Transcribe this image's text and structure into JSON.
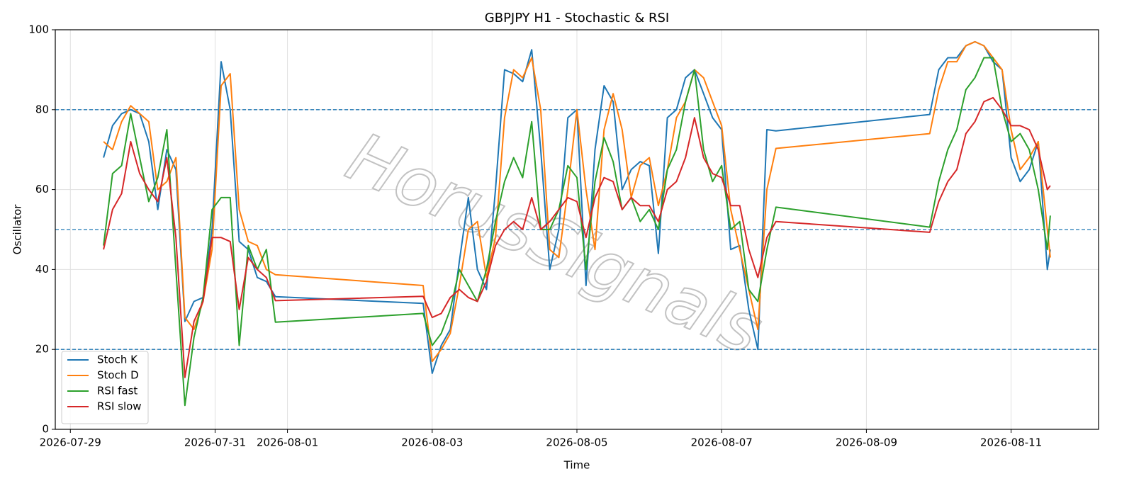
{
  "chart_data": {
    "type": "line",
    "title": "GBPJPY H1 - Stochastic & RSI",
    "x_label": "Time",
    "y_label": "Oscillator",
    "watermark": "HorusSignals",
    "x": [
      "2026-07-29 11:00",
      "2026-07-29 14:00",
      "2026-07-29 17:00",
      "2026-07-29 20:00",
      "2026-07-29 23:00",
      "2026-07-30 02:00",
      "2026-07-30 05:00",
      "2026-07-30 08:00",
      "2026-07-30 11:00",
      "2026-07-30 14:00",
      "2026-07-30 17:00",
      "2026-07-30 20:00",
      "2026-07-30 23:00",
      "2026-07-31 02:00",
      "2026-07-31 05:00",
      "2026-07-31 08:00",
      "2026-07-31 11:00",
      "2026-07-31 14:00",
      "2026-07-31 17:00",
      "2026-07-31 20:00",
      "2026-08-02 21:00",
      "2026-08-03 00:00",
      "2026-08-03 03:00",
      "2026-08-03 06:00",
      "2026-08-03 09:00",
      "2026-08-03 12:00",
      "2026-08-03 15:00",
      "2026-08-03 18:00",
      "2026-08-03 21:00",
      "2026-08-04 00:00",
      "2026-08-04 03:00",
      "2026-08-04 06:00",
      "2026-08-04 09:00",
      "2026-08-04 12:00",
      "2026-08-04 15:00",
      "2026-08-04 18:00",
      "2026-08-04 21:00",
      "2026-08-05 00:00",
      "2026-08-05 03:00",
      "2026-08-05 06:00",
      "2026-08-05 09:00",
      "2026-08-05 12:00",
      "2026-08-05 15:00",
      "2026-08-05 18:00",
      "2026-08-05 21:00",
      "2026-08-06 00:00",
      "2026-08-06 03:00",
      "2026-08-06 06:00",
      "2026-08-06 09:00",
      "2026-08-06 12:00",
      "2026-08-06 15:00",
      "2026-08-06 18:00",
      "2026-08-06 21:00",
      "2026-08-07 00:00",
      "2026-08-07 03:00",
      "2026-08-07 06:00",
      "2026-08-07 09:00",
      "2026-08-07 12:00",
      "2026-08-07 15:00",
      "2026-08-07 18:00",
      "2026-08-09 21:00",
      "2026-08-10 00:00",
      "2026-08-10 03:00",
      "2026-08-10 06:00",
      "2026-08-10 09:00",
      "2026-08-10 12:00",
      "2026-08-10 15:00",
      "2026-08-10 18:00",
      "2026-08-10 21:00",
      "2026-08-11 00:00",
      "2026-08-11 03:00",
      "2026-08-11 06:00",
      "2026-08-11 09:00",
      "2026-08-11 12:00",
      "2026-08-11 13:00"
    ],
    "series": [
      {
        "name": "Stoch K",
        "color": "#1f77b4",
        "values": [
          68,
          76,
          79,
          80,
          79,
          72,
          55,
          70,
          65,
          27,
          32,
          33,
          50,
          92,
          80,
          47,
          45,
          38,
          37,
          33.2,
          31.5,
          14,
          21,
          25,
          42,
          58,
          40,
          35,
          60,
          90,
          89,
          87,
          95,
          70,
          40,
          50,
          78,
          80,
          36,
          70,
          86,
          82,
          60,
          65,
          67,
          66,
          44,
          78,
          80,
          88,
          90,
          84,
          78,
          75,
          45,
          46,
          30,
          20,
          75,
          74.7,
          78.8,
          90,
          93,
          93,
          96,
          97,
          96,
          92,
          90,
          68,
          62,
          65,
          72,
          40,
          45
        ]
      },
      {
        "name": "Stoch D",
        "color": "#ff7f0e",
        "values": [
          72,
          70,
          77,
          81,
          79,
          77,
          60,
          62,
          68,
          28,
          25,
          32,
          45,
          86,
          89,
          55,
          47,
          46,
          40,
          38.7,
          36,
          17,
          20,
          24,
          36,
          50,
          52,
          38,
          48,
          78,
          90,
          88,
          93,
          80,
          45,
          43,
          60,
          80,
          60,
          45,
          75,
          84,
          75,
          58,
          66,
          68,
          56,
          65,
          78,
          82,
          90,
          88,
          82,
          76,
          55,
          45,
          35,
          25,
          60,
          70.3,
          74,
          85,
          92,
          92,
          96,
          97,
          96,
          93,
          90,
          75,
          65,
          68,
          72,
          50,
          43
        ]
      },
      {
        "name": "RSI fast",
        "color": "#2ca02c",
        "values": [
          46,
          64,
          66,
          79,
          68,
          57,
          63,
          75,
          40,
          6,
          23,
          33,
          55,
          58,
          58,
          21,
          46,
          40,
          45,
          26.8,
          29,
          21,
          24,
          30,
          40,
          36,
          32,
          40,
          52,
          62,
          68,
          63,
          77,
          50,
          50,
          55,
          66,
          63,
          40,
          62,
          73,
          67,
          55,
          58,
          52,
          55,
          50,
          65,
          70,
          82,
          90,
          70,
          62,
          66,
          50,
          52,
          35,
          32,
          45,
          55.6,
          50.6,
          62,
          70,
          75,
          85,
          88,
          93,
          93,
          80,
          72,
          74,
          70,
          60,
          45,
          53.5
        ]
      },
      {
        "name": "RSI slow",
        "color": "#d62728",
        "values": [
          45,
          55,
          59,
          72,
          64,
          60,
          57,
          68,
          48,
          13,
          27,
          32,
          48,
          48,
          47,
          30,
          43,
          40,
          38,
          32.2,
          33.3,
          28,
          29,
          33,
          35,
          33,
          32,
          37,
          46,
          50,
          52,
          50,
          58,
          50,
          52,
          55,
          58,
          57,
          48,
          58,
          63,
          62,
          55,
          58,
          56,
          56,
          52,
          60,
          62,
          68,
          78,
          68,
          64,
          63,
          56,
          56,
          45,
          38,
          48,
          52,
          49.3,
          57,
          62,
          65,
          74,
          77,
          82,
          83,
          80,
          76,
          76,
          75,
          70,
          60,
          61
        ]
      }
    ],
    "reference_lines": [
      20,
      50,
      80
    ],
    "reference_color": "#1f77b4",
    "xlim": [
      "2026-07-28 19:00",
      "2026-08-12 05:00"
    ],
    "xticks": [
      "2026-07-29",
      "2026-07-31",
      "2026-08-01",
      "2026-08-03",
      "2026-08-05",
      "2026-08-07",
      "2026-08-09",
      "2026-08-11"
    ],
    "ylim": [
      0,
      100
    ],
    "yticks": [
      0,
      20,
      40,
      60,
      80,
      100
    ],
    "grid": true,
    "legend": "lower left"
  }
}
